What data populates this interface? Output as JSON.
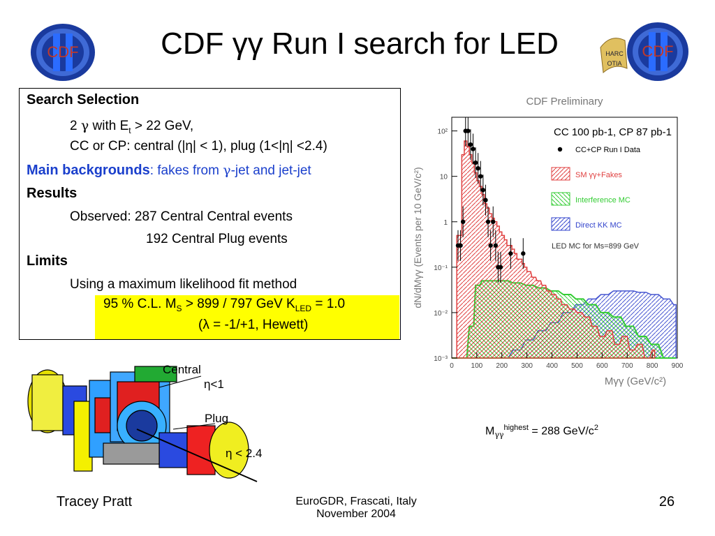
{
  "slide": {
    "title": "CDF γγ Run I search for LED",
    "page_number": "26"
  },
  "logos": {
    "left_text": "CDF",
    "right_text": "CDF",
    "right_banner_1": "HARC",
    "right_banner_2": "OTIA"
  },
  "selection": {
    "search_heading": "Search Selection",
    "line1_prefix": "2 ",
    "gamma": "γ",
    "line1_mid": " with E",
    "line1_sub": "t",
    "line1_suffix": "  > 22 GeV,",
    "line2": "CC or CP: central (|η| < 1), plug (1<|η| <2.4)",
    "bg_heading": "Main backgrounds",
    "bg_text_a": ": fakes from ",
    "bg_text_b": "-jet and jet-jet",
    "results_heading": "Results",
    "observed": "Observed: 287 Central Central events",
    "plug_events": "192 Central Plug events",
    "limits_heading": "Limits",
    "method": "Using a maximum likelihood fit method",
    "limit_a": "95 % C.L. M",
    "limit_sub_s": "S",
    "limit_b": " > 899 / 797 GeV K",
    "limit_sub_led": "LED",
    "limit_c": " = 1.0",
    "limit_line2": "(λ = -1/+1, Hewett)"
  },
  "detector": {
    "label_central": "Central",
    "label_eta1": "η<1",
    "label_plug": "Plug",
    "label_eta2": "η < 2.4"
  },
  "mass_note": {
    "prefix": "M",
    "sub": "γγ",
    "sup": "highest",
    "suffix": " = 288 GeV/c",
    "sup2": "2"
  },
  "footer": {
    "author": "Tracey Pratt",
    "venue_line1": "EuroGDR, Frascati, Italy",
    "venue_line2": "November 2004"
  },
  "chart_data": {
    "type": "bar",
    "title": "CDF Preliminary",
    "annotation": "CC 100 pb-1, CP 87 pb-1",
    "xlabel": "Mγγ (GeV/c²)",
    "ylabel": "dN/dMγγ (Events per 10 GeV/c²)",
    "xlim": [
      0,
      900
    ],
    "ylim": [
      0.001,
      200
    ],
    "yscale": "log",
    "x_ticks": [
      "0",
      "100",
      "200",
      "300",
      "400",
      "500",
      "600",
      "700",
      "800",
      "900"
    ],
    "y_ticks": [
      "10⁻³",
      "10⁻²",
      "10⁻¹",
      "1",
      "10",
      "10²"
    ],
    "legend": [
      {
        "label": "CC+CP Run I Data"
      },
      {
        "label": "SM γγ+Fakes"
      },
      {
        "label": "Interference MC"
      },
      {
        "label": "Direct KK MC"
      }
    ],
    "legend_note": "LED MC for Ms=899 GeV",
    "legend_placement": "top-right",
    "colors": {
      "sm": "#e04040",
      "interference": "#33cc33",
      "direct": "#3344cc",
      "data": "#000000"
    },
    "series": [
      {
        "name": "CC+CP Run I Data",
        "x": [
          25,
          35,
          45,
          55,
          65,
          75,
          85,
          95,
          105,
          115,
          125,
          135,
          145,
          155,
          165,
          175,
          185,
          195,
          235,
          285
        ],
        "y": [
          0.3,
          0.3,
          1,
          100,
          100,
          50,
          40,
          20,
          15,
          10,
          5,
          3,
          1,
          0.3,
          1,
          0.3,
          0.1,
          0.1,
          0.2,
          0.2
        ]
      },
      {
        "name": "SM γγ+Fakes",
        "x": [
          5,
          15,
          25,
          35,
          45,
          55,
          65,
          75,
          85,
          95,
          105,
          115,
          125,
          135,
          145,
          155,
          165,
          175,
          185,
          195,
          205,
          215,
          225,
          235,
          245,
          255,
          265,
          275,
          285,
          295,
          305,
          325,
          345,
          365,
          385,
          405,
          425,
          445,
          475,
          505,
          535,
          565,
          595,
          625,
          655,
          685,
          715,
          745,
          775,
          805
        ],
        "y": [
          0.001,
          0.001,
          0.5,
          0.5,
          30,
          60,
          45,
          30,
          20,
          12,
          8,
          6,
          4,
          2.5,
          2,
          1.5,
          1.2,
          1,
          0.8,
          0.6,
          0.5,
          0.4,
          0.3,
          0.3,
          0.25,
          0.2,
          0.15,
          0.15,
          0.12,
          0.1,
          0.08,
          0.06,
          0.05,
          0.04,
          0.03,
          0.025,
          0.02,
          0.015,
          0.012,
          0.01,
          0.008,
          0.005,
          0.003,
          0.004,
          0.002,
          0.003,
          0.0015,
          0.002,
          0.001,
          0.0015
        ]
      },
      {
        "name": "Interference MC",
        "x": [
          5,
          45,
          75,
          100,
          125,
          150,
          175,
          200,
          250,
          300,
          350,
          400,
          450,
          500,
          550,
          600,
          650,
          700,
          750,
          800,
          850,
          890
        ],
        "y": [
          0.001,
          0.001,
          0.005,
          0.04,
          0.05,
          0.05,
          0.05,
          0.05,
          0.045,
          0.04,
          0.035,
          0.03,
          0.025,
          0.02,
          0.015,
          0.01,
          0.008,
          0.005,
          0.003,
          0.002,
          0.001,
          0.001
        ]
      },
      {
        "name": "Direct KK MC",
        "x": [
          5,
          200,
          250,
          300,
          350,
          400,
          450,
          500,
          550,
          600,
          650,
          700,
          750,
          800,
          850,
          890
        ],
        "y": [
          0.001,
          0.001,
          0.0015,
          0.0025,
          0.004,
          0.006,
          0.01,
          0.015,
          0.02,
          0.025,
          0.03,
          0.03,
          0.028,
          0.025,
          0.02,
          0.015
        ]
      }
    ]
  }
}
